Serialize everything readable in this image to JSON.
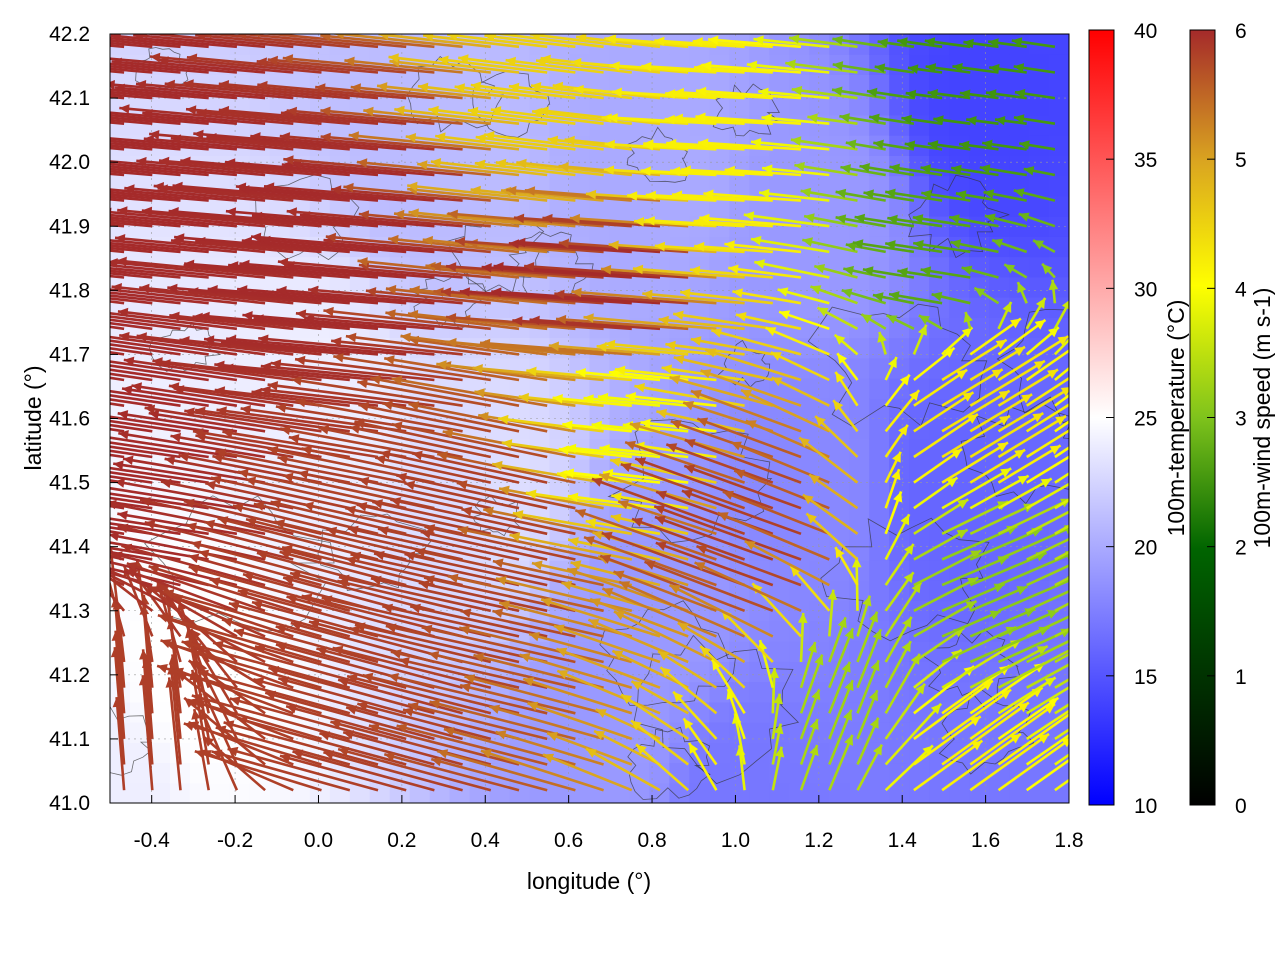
{
  "chart_data": {
    "type": "vector-field",
    "xlabel": "longitude (°)",
    "ylabel": "latitude (°)",
    "xlim": [
      -0.5,
      1.8
    ],
    "ylim": [
      41.0,
      42.2
    ],
    "x_ticks": [
      "-0.4",
      "-0.2",
      "0.0",
      "0.2",
      "0.4",
      "0.6",
      "0.8",
      "1.0",
      "1.2",
      "1.4",
      "1.6",
      "1.8"
    ],
    "y_ticks": [
      "41.0",
      "41.1",
      "41.2",
      "41.3",
      "41.4",
      "41.5",
      "41.6",
      "41.7",
      "41.8",
      "41.9",
      "42.0",
      "42.1",
      "42.2"
    ],
    "grid": true,
    "background_field": {
      "name": "100m-temperature (°C)",
      "range": [
        10,
        40
      ],
      "ticks": [
        "10",
        "15",
        "20",
        "25",
        "30",
        "35",
        "40"
      ],
      "colors": [
        "#0000ff",
        "#ffffff",
        "#ff0000"
      ],
      "regions": [
        {
          "lon": -0.5,
          "lat": 41.0,
          "value": 24
        },
        {
          "lon": -0.3,
          "lat": 41.2,
          "value": 25
        },
        {
          "lon": 0.0,
          "lat": 41.6,
          "value": 24
        },
        {
          "lon": 0.4,
          "lat": 41.5,
          "value": 23
        },
        {
          "lon": 0.7,
          "lat": 41.1,
          "value": 19
        },
        {
          "lon": 0.8,
          "lat": 41.3,
          "value": 19
        },
        {
          "lon": 1.0,
          "lat": 41.0,
          "value": 17
        },
        {
          "lon": 1.2,
          "lat": 41.5,
          "value": 18
        },
        {
          "lon": 1.5,
          "lat": 41.5,
          "value": 16
        },
        {
          "lon": 1.7,
          "lat": 41.0,
          "value": 17
        },
        {
          "lon": 1.2,
          "lat": 41.9,
          "value": 19
        },
        {
          "lon": 1.6,
          "lat": 42.1,
          "value": 14
        },
        {
          "lon": 0.8,
          "lat": 42.0,
          "value": 20
        },
        {
          "lon": 0.3,
          "lat": 42.0,
          "value": 21
        }
      ]
    },
    "vector_field": {
      "name": "100m-wind speed (m s-1)",
      "range": [
        0,
        6
      ],
      "ticks": [
        "0",
        "1",
        "2",
        "3",
        "4",
        "5",
        "6"
      ],
      "colors": [
        "#000000",
        "#006400",
        "#7fc31c",
        "#ffff00",
        "#daa520",
        "#a52a2a"
      ],
      "regimes": [
        {
          "lon": -0.45,
          "lat": 41.1,
          "u": -0.3,
          "v": 3.8,
          "speed": 5.8
        },
        {
          "lon": -0.35,
          "lat": 41.5,
          "u": -5.5,
          "v": 0.8,
          "speed": 6.0
        },
        {
          "lon": -0.3,
          "lat": 42.0,
          "u": -5.8,
          "v": 0.5,
          "speed": 6.0
        },
        {
          "lon": 0.2,
          "lat": 41.85,
          "u": -6.0,
          "v": 0.5,
          "speed": 6.0
        },
        {
          "lon": 0.2,
          "lat": 41.15,
          "u": -5.5,
          "v": 1.5,
          "speed": 5.8
        },
        {
          "lon": 0.5,
          "lat": 41.4,
          "u": -5.5,
          "v": 1.2,
          "speed": 5.8
        },
        {
          "lon": 0.7,
          "lat": 42.1,
          "u": -4.0,
          "v": 0.5,
          "speed": 4.2
        },
        {
          "lon": 0.8,
          "lat": 41.8,
          "u": -5.8,
          "v": 0.4,
          "speed": 6.0
        },
        {
          "lon": 0.85,
          "lat": 41.6,
          "u": -3.0,
          "v": 0.3,
          "speed": 3.5
        },
        {
          "lon": 1.1,
          "lat": 41.4,
          "u": -5.0,
          "v": 1.8,
          "speed": 5.8
        },
        {
          "lon": 1.25,
          "lat": 41.15,
          "u": 0.8,
          "v": 2.0,
          "speed": 2.7
        },
        {
          "lon": 1.5,
          "lat": 41.05,
          "u": 2.8,
          "v": 2.0,
          "speed": 3.8
        },
        {
          "lon": 1.55,
          "lat": 41.3,
          "u": 2.6,
          "v": 1.1,
          "speed": 2.5
        },
        {
          "lon": 1.55,
          "lat": 41.6,
          "u": 2.5,
          "v": 1.5,
          "speed": 4.0
        },
        {
          "lon": 1.5,
          "lat": 41.85,
          "u": -2.0,
          "v": 0.3,
          "speed": 2.0
        },
        {
          "lon": 1.6,
          "lat": 42.1,
          "u": -1.5,
          "v": 0.2,
          "speed": 1.8
        },
        {
          "lon": 1.0,
          "lat": 42.0,
          "u": -3.5,
          "v": 0.2,
          "speed": 3.8
        }
      ]
    }
  }
}
